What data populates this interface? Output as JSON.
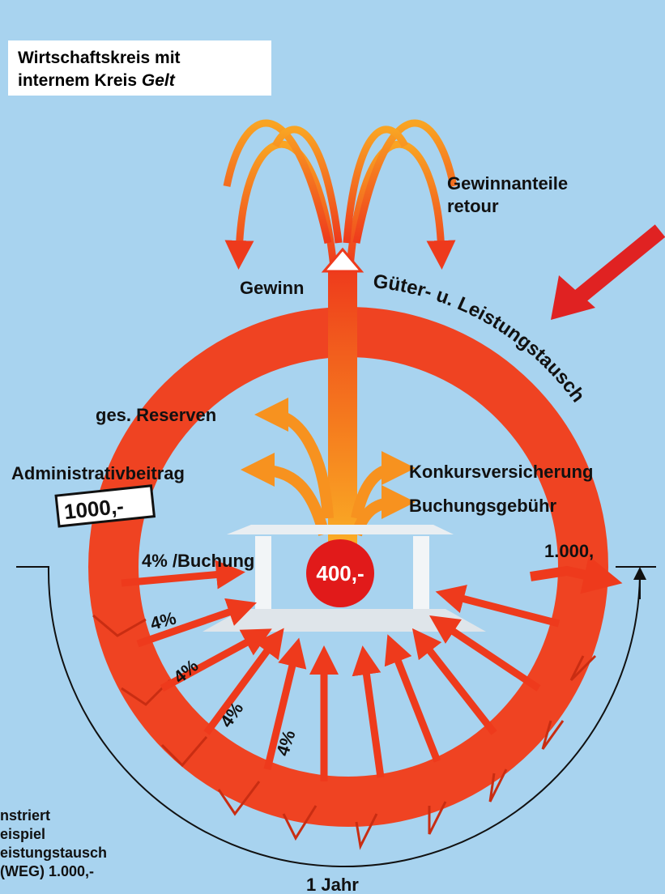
{
  "title": {
    "line1": "Wirtschaftskreis mit",
    "line2": "internem Kreis ",
    "line2_italic": "Gelt"
  },
  "labels": {
    "gewinnanteile": [
      "Gewinnanteile",
      "retour"
    ],
    "gewinn": "Gewinn",
    "tausch": "Güter- u. Leistungstausch",
    "reserven": "ges. Reserven",
    "admin": "Administrativbeitrag",
    "konkurs": "Konkursversicherung",
    "buchungsgebuehr": "Buchungsgebühr",
    "start_amount": "1000,-",
    "end_amount": "1.000,",
    "per_booking": "4% /Buchung",
    "center": "400,-",
    "percents": [
      "4%",
      "4%",
      "4%",
      "4%"
    ],
    "period": "1 Jahr"
  },
  "caption": {
    "lines": [
      "nstriert",
      "eispiel",
      "eistungstausch",
      "(WEG) 1.000,-"
    ]
  }
}
